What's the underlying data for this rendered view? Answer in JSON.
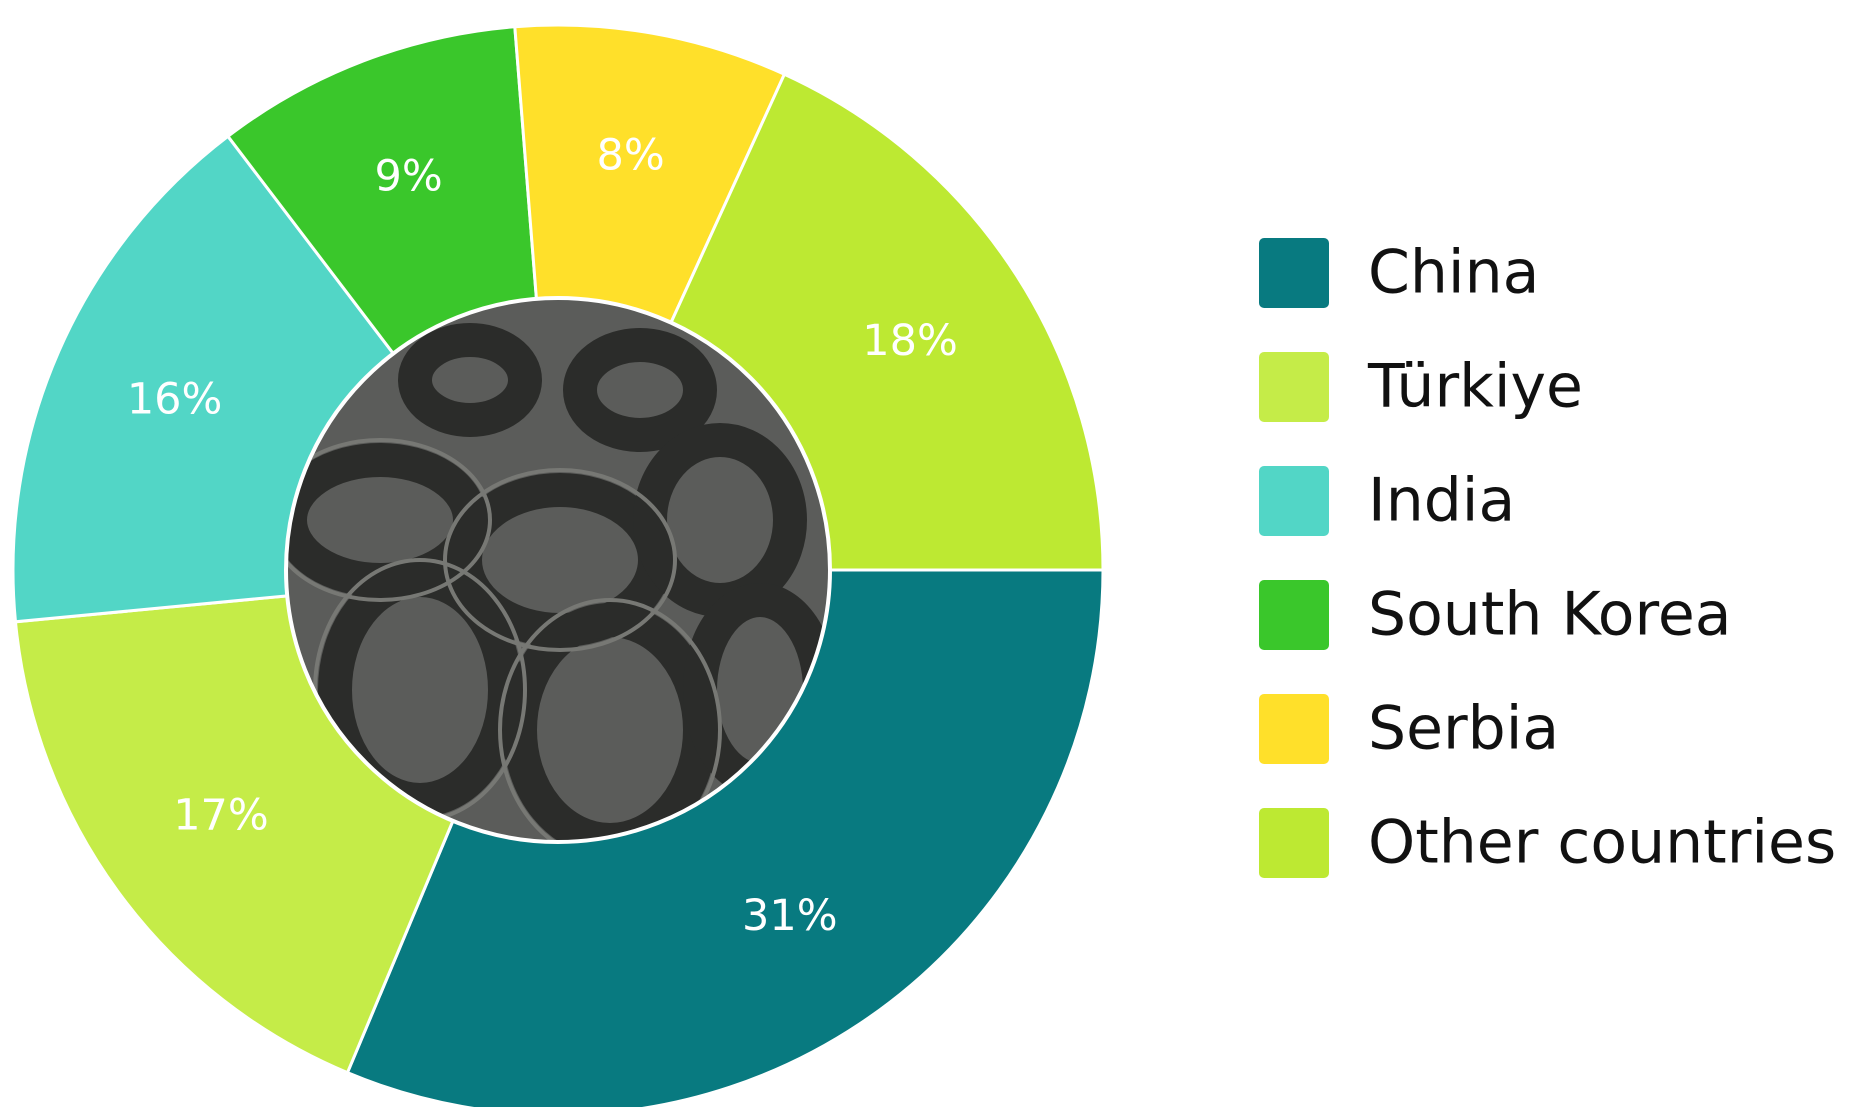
{
  "chart_data": {
    "type": "pie",
    "donut": true,
    "categories": [
      "China",
      "Türkiye",
      "India",
      "South Korea",
      "Serbia",
      "Other countries"
    ],
    "values": [
      31,
      17,
      16,
      9,
      8,
      18
    ],
    "value_labels": [
      "31%",
      "17%",
      "16%",
      "9%",
      "8%",
      "18%"
    ],
    "colors": [
      "#087a80",
      "#c5ec48",
      "#52d6c6",
      "#3ac72b",
      "#ffe02a",
      "#bde932"
    ],
    "legend": "right"
  }
}
